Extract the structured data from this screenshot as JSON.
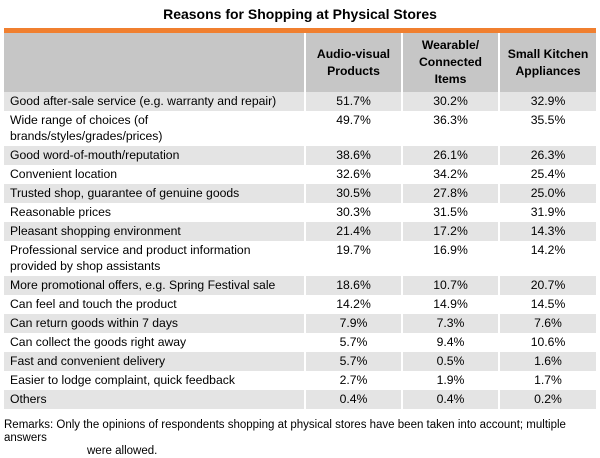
{
  "chart_data": {
    "type": "table",
    "title": "Reasons for Shopping at Physical Stores",
    "columns": [
      "",
      "Audio-visual Products",
      "Wearable/ Connected Items",
      "Small Kitchen Appliances"
    ],
    "rows": [
      {
        "label": "Good after-sale service (e.g. warranty and repair)",
        "values": [
          "51.7%",
          "30.2%",
          "32.9%"
        ]
      },
      {
        "label": "Wide range of choices (of brands/styles/grades/prices)",
        "values": [
          "49.7%",
          "36.3%",
          "35.5%"
        ]
      },
      {
        "label": "Good word-of-mouth/reputation",
        "values": [
          "38.6%",
          "26.1%",
          "26.3%"
        ]
      },
      {
        "label": "Convenient location",
        "values": [
          "32.6%",
          "34.2%",
          "25.4%"
        ]
      },
      {
        "label": "Trusted shop, guarantee of genuine goods",
        "values": [
          "30.5%",
          "27.8%",
          "25.0%"
        ]
      },
      {
        "label": "Reasonable prices",
        "values": [
          "30.3%",
          "31.5%",
          "31.9%"
        ]
      },
      {
        "label": "Pleasant shopping environment",
        "values": [
          "21.4%",
          "17.2%",
          "14.3%"
        ]
      },
      {
        "label": "Professional service and product information provided by shop assistants",
        "values": [
          "19.7%",
          "16.9%",
          "14.2%"
        ]
      },
      {
        "label": "More promotional offers, e.g. Spring Festival sale",
        "values": [
          "18.6%",
          "10.7%",
          "20.7%"
        ]
      },
      {
        "label": "Can feel and touch the product",
        "values": [
          "14.2%",
          "14.9%",
          "14.5%"
        ]
      },
      {
        "label": "Can return goods within 7 days",
        "values": [
          "7.9%",
          "7.3%",
          "7.6%"
        ]
      },
      {
        "label": "Can collect the goods right away",
        "values": [
          "5.7%",
          "9.4%",
          "10.6%"
        ]
      },
      {
        "label": "Fast and convenient delivery",
        "values": [
          "5.7%",
          "0.5%",
          "1.6%"
        ]
      },
      {
        "label": "Easier to lodge complaint, quick feedback",
        "values": [
          "2.7%",
          "1.9%",
          "1.7%"
        ]
      },
      {
        "label": "Others",
        "values": [
          "0.4%",
          "0.4%",
          "0.2%"
        ]
      }
    ],
    "remarks_line1": "Remarks: Only the opinions of respondents shopping at physical stores have been taken into account; multiple answers",
    "remarks_line2": "were allowed."
  },
  "colors": {
    "header_bar": "#f07f2f",
    "header_bg": "#c6c6c6",
    "shade_row": "#e4e4e4"
  }
}
